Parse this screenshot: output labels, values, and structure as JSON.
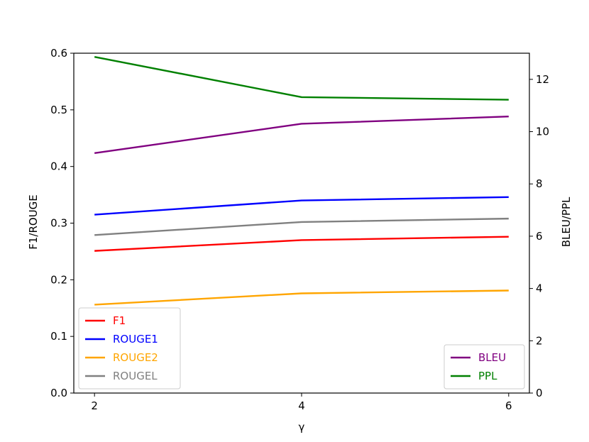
{
  "chart_data": {
    "type": "line",
    "title": "",
    "xlabel": "γ",
    "ylabel_left": "F1/ROUGE",
    "ylabel_right": "BLEU/PPL",
    "x": [
      2,
      4,
      6
    ],
    "x_ticks": [
      "2",
      "4",
      "6"
    ],
    "xlim": [
      1.8,
      6.2
    ],
    "ylim_left": [
      0.0,
      0.6
    ],
    "ylim_right": [
      0,
      13
    ],
    "left_ticks": [
      "0.0",
      "0.1",
      "0.2",
      "0.3",
      "0.4",
      "0.5",
      "0.6"
    ],
    "right_ticks": [
      "0",
      "2",
      "4",
      "6",
      "8",
      "10",
      "12"
    ],
    "grid": false,
    "left_series": [
      {
        "name": "F1",
        "color": "#ff0000",
        "values": [
          0.251,
          0.27,
          0.276
        ]
      },
      {
        "name": "ROUGE1",
        "color": "#0000ff",
        "values": [
          0.315,
          0.34,
          0.346
        ]
      },
      {
        "name": "ROUGE2",
        "color": "#ffa500",
        "values": [
          0.156,
          0.176,
          0.181
        ]
      },
      {
        "name": "ROUGEL",
        "color": "#808080",
        "values": [
          0.279,
          0.302,
          0.308
        ]
      }
    ],
    "right_series": [
      {
        "name": "BLEU",
        "color": "#800080",
        "values": [
          9.18,
          10.3,
          10.58
        ]
      },
      {
        "name": "PPL",
        "color": "#008000",
        "values": [
          12.86,
          11.32,
          11.22
        ]
      }
    ],
    "legend_left_position": "lower-left",
    "legend_right_position": "lower-right"
  }
}
